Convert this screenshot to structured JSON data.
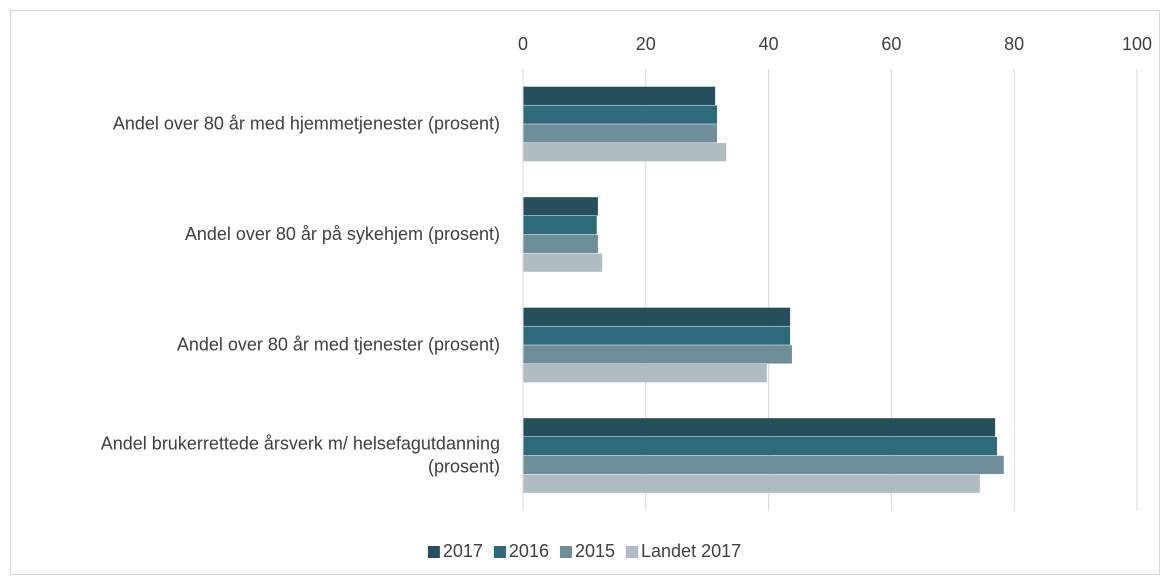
{
  "chart_data": {
    "type": "hbar",
    "categories": [
      "Andel over 80 år med hjemmetjenester (prosent)",
      "Andel over 80 år på sykehjem (prosent)",
      "Andel over 80 år med tjenester (prosent)",
      "Andel brukerrettede årsverk m/ helsefagutdanning (prosent)"
    ],
    "series": [
      {
        "name": "2017",
        "color": "#264f5e",
        "values": [
          31.3,
          12.2,
          43.5,
          76.9
        ]
      },
      {
        "name": "2016",
        "color": "#2e6b7a",
        "values": [
          31.6,
          12.0,
          43.5,
          77.2
        ]
      },
      {
        "name": "2015",
        "color": "#6e8f99",
        "values": [
          31.6,
          12.2,
          43.8,
          78.3
        ]
      },
      {
        "name": "Landet 2017",
        "color": "#afbcc2",
        "values": [
          33.1,
          12.9,
          39.7,
          74.4
        ]
      }
    ],
    "xlim": [
      0,
      100
    ],
    "xticks": [
      0,
      20,
      40,
      60,
      80,
      100
    ],
    "grid": true,
    "legend": "bottom"
  }
}
